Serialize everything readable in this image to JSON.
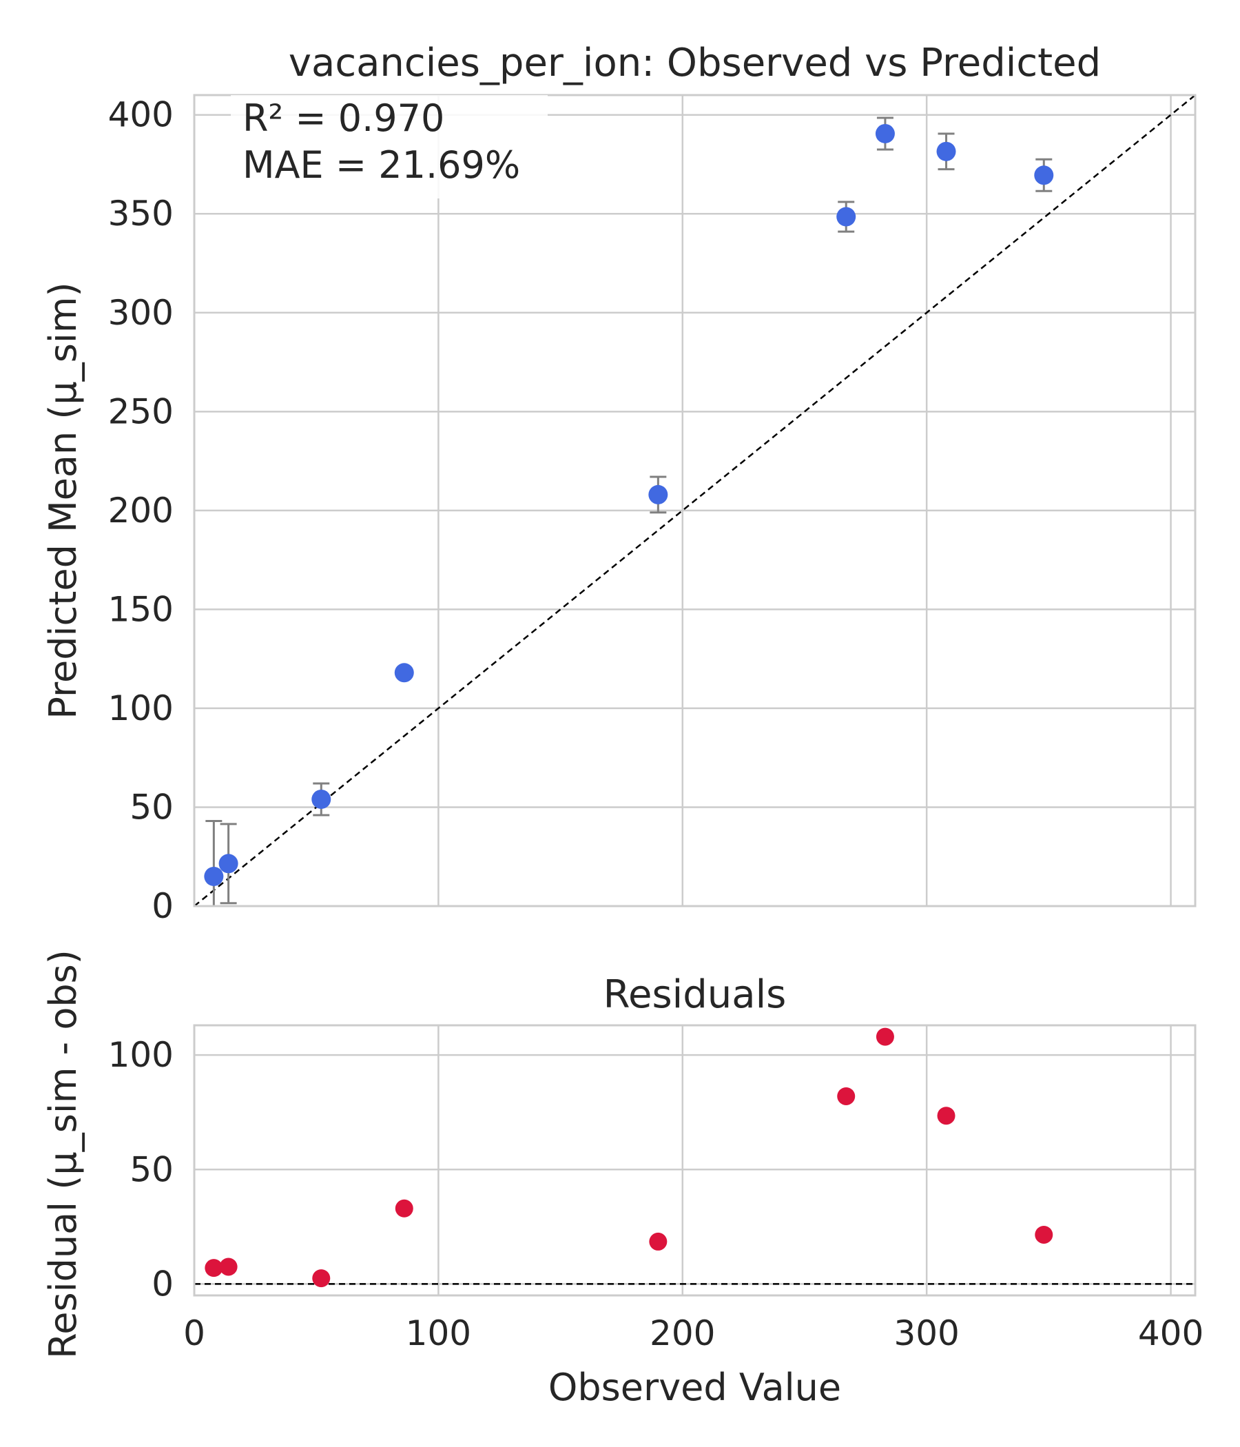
{
  "chart_data": [
    {
      "type": "scatter",
      "title": "vacancies_per_ion: Observed vs Predicted",
      "xlabel": "",
      "ylabel": "Predicted Mean (μ_sim)",
      "xlim": [
        0,
        410
      ],
      "ylim": [
        0,
        410
      ],
      "yticks": [
        0,
        50,
        100,
        150,
        200,
        250,
        300,
        350,
        400
      ],
      "xticks": [
        0,
        100,
        200,
        300,
        400
      ],
      "grid": true,
      "annotations": [
        "R² = 0.970",
        "MAE = 21.69%"
      ],
      "reference_line": "y = x (dashed)",
      "series": [
        {
          "x": [
            8,
            14,
            52,
            86,
            190,
            267,
            283,
            308,
            348
          ],
          "y": [
            15,
            21.5,
            54,
            118,
            208,
            348.5,
            390.5,
            381.5,
            369.5
          ],
          "yerr": [
            28,
            20,
            8,
            2,
            9,
            7.5,
            8,
            9,
            8
          ]
        }
      ],
      "colors": {
        "points": "#4169E1",
        "errorbars": "#808080",
        "refline": "#000000"
      }
    },
    {
      "type": "scatter",
      "title": "Residuals",
      "xlabel": "Observed Value",
      "ylabel": "Residual (μ_sim - obs)",
      "xlim": [
        0,
        410
      ],
      "ylim": [
        -5,
        113
      ],
      "yticks": [
        0,
        50,
        100
      ],
      "xticks": [
        0,
        100,
        200,
        300,
        400
      ],
      "grid": true,
      "reference_line": "y = 0 (dashed)",
      "series": [
        {
          "x": [
            8,
            14,
            52,
            86,
            190,
            267,
            283,
            308,
            348
          ],
          "y": [
            7,
            7.5,
            2.5,
            33,
            18.5,
            82,
            108,
            73.5,
            21.5
          ]
        }
      ],
      "colors": {
        "points": "#DC143C",
        "refline": "#000000"
      }
    }
  ]
}
